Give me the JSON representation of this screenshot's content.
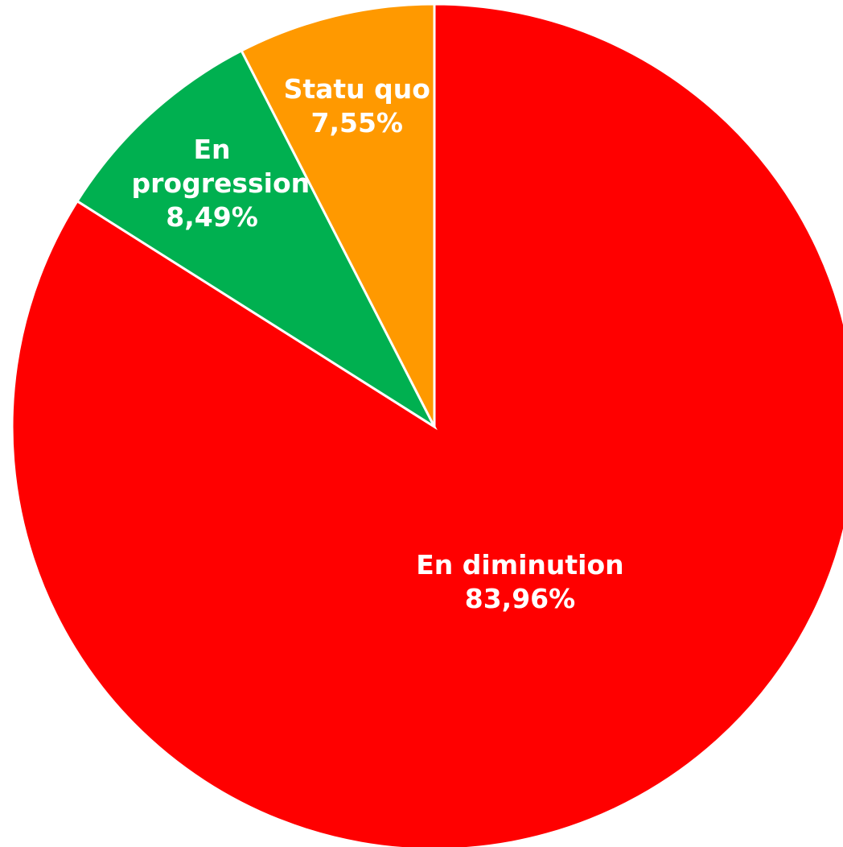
{
  "chart_data": {
    "type": "pie",
    "categories": [
      "En diminution",
      "En progression",
      "Statu quo"
    ],
    "values": [
      83.96,
      8.49,
      7.55
    ],
    "value_labels": [
      "83,96%",
      "8,49%",
      "7,55%"
    ],
    "colors": [
      "#ff0000",
      "#00b050",
      "#ff9900"
    ]
  }
}
